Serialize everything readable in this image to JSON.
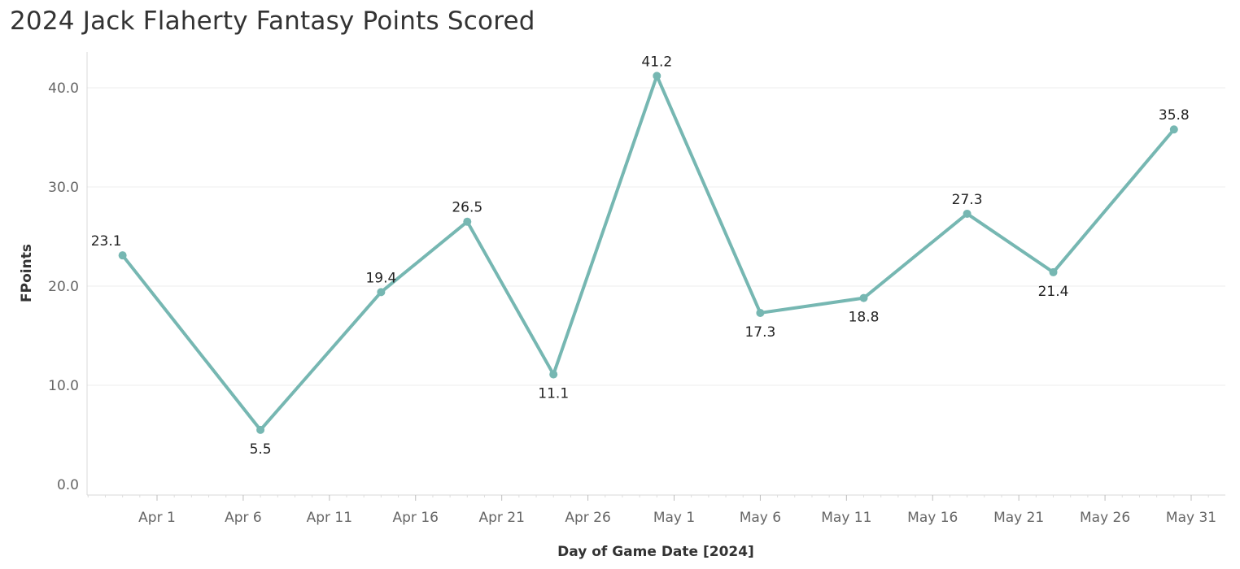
{
  "chart_data": {
    "type": "line",
    "title": "2024 Jack Flaherty Fantasy Points Scored",
    "xlabel": "Day of Game Date [2024]",
    "ylabel": "FPoints",
    "ylim": [
      0,
      43
    ],
    "yticks": [
      0,
      10,
      20,
      30,
      40
    ],
    "ytick_labels": [
      "0.0",
      "10.0",
      "20.0",
      "30.0",
      "40.0"
    ],
    "xlim": [
      "2024-03-24",
      "2024-06-02"
    ],
    "xticks": [
      "2024-04-01",
      "2024-04-06",
      "2024-04-11",
      "2024-04-16",
      "2024-04-21",
      "2024-04-26",
      "2024-05-01",
      "2024-05-06",
      "2024-05-11",
      "2024-05-16",
      "2024-05-21",
      "2024-05-26",
      "2024-05-31"
    ],
    "xtick_labels": [
      "Apr 1",
      "Apr 6",
      "Apr 11",
      "Apr 16",
      "Apr 21",
      "Apr 26",
      "May 1",
      "May 6",
      "May 11",
      "May 16",
      "May 21",
      "May 26",
      "May 31"
    ],
    "grid": true,
    "color": "#76b7b2",
    "series": [
      {
        "points": [
          {
            "x": "2024-03-30",
            "y": 23.1,
            "label": "23.1",
            "label_pos": "above"
          },
          {
            "x": "2024-04-07",
            "y": 5.5,
            "label": "5.5",
            "label_pos": "below"
          },
          {
            "x": "2024-04-14",
            "y": 19.4,
            "label": "19.4",
            "label_pos": "above"
          },
          {
            "x": "2024-04-19",
            "y": 26.5,
            "label": "26.5",
            "label_pos": "above"
          },
          {
            "x": "2024-04-24",
            "y": 11.1,
            "label": "11.1",
            "label_pos": "below"
          },
          {
            "x": "2024-04-30",
            "y": 41.2,
            "label": "41.2",
            "label_pos": "above"
          },
          {
            "x": "2024-05-06",
            "y": 17.3,
            "label": "17.3",
            "label_pos": "below"
          },
          {
            "x": "2024-05-12",
            "y": 18.8,
            "label": "18.8",
            "label_pos": "below"
          },
          {
            "x": "2024-05-18",
            "y": 27.3,
            "label": "27.3",
            "label_pos": "above"
          },
          {
            "x": "2024-05-23",
            "y": 21.4,
            "label": "21.4",
            "label_pos": "below"
          },
          {
            "x": "2024-05-30",
            "y": 35.8,
            "label": "35.8",
            "label_pos": "above"
          }
        ]
      }
    ]
  }
}
